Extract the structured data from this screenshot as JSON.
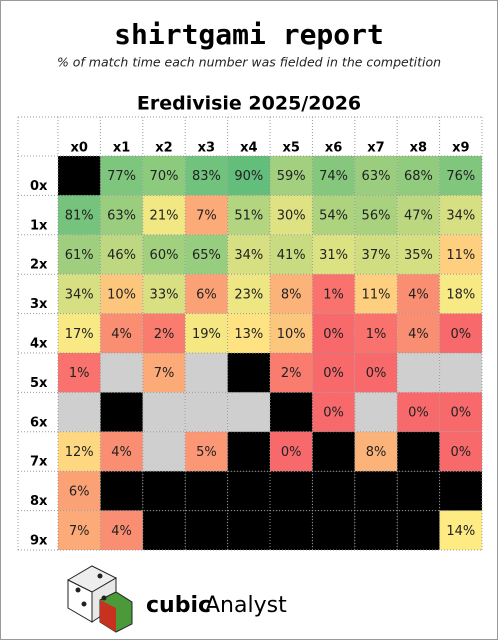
{
  "chart_data": {
    "type": "heatmap",
    "title": "shirtgami report",
    "subtitle": "% of match time each number was fielded in the competition",
    "section": "Eredivisie 2025/2026",
    "brand": [
      "cubic",
      "Analyst"
    ],
    "x": [
      "x0",
      "x1",
      "x2",
      "x3",
      "x4",
      "x5",
      "x6",
      "x7",
      "x8",
      "x9"
    ],
    "y": [
      "0x",
      "1x",
      "2x",
      "3x",
      "4x",
      "5x",
      "6x",
      "7x",
      "8x",
      "9x"
    ],
    "values": [
      [
        null,
        77,
        70,
        83,
        90,
        59,
        74,
        63,
        68,
        76
      ],
      [
        81,
        63,
        21,
        7,
        51,
        30,
        54,
        56,
        47,
        34
      ],
      [
        61,
        46,
        60,
        65,
        34,
        41,
        31,
        37,
        35,
        11
      ],
      [
        34,
        10,
        33,
        6,
        23,
        8,
        1,
        11,
        4,
        18
      ],
      [
        17,
        4,
        2,
        19,
        13,
        10,
        0,
        1,
        4,
        0
      ],
      [
        1,
        null,
        7,
        null,
        null,
        2,
        0,
        0,
        null,
        null
      ],
      [
        null,
        null,
        null,
        null,
        null,
        null,
        0,
        null,
        0,
        0
      ],
      [
        12,
        4,
        null,
        5,
        null,
        0,
        null,
        8,
        null,
        0
      ],
      [
        6,
        null,
        null,
        null,
        null,
        null,
        null,
        null,
        null,
        null
      ],
      [
        7,
        4,
        null,
        null,
        null,
        null,
        null,
        null,
        null,
        14
      ]
    ],
    "value_labels": [
      [
        null,
        "77%",
        "70%",
        "83%",
        "90%",
        "59%",
        "74%",
        "63%",
        "68%",
        "76%"
      ],
      [
        "81%",
        "63%",
        "21%",
        "7%",
        "51%",
        "30%",
        "54%",
        "56%",
        "47%",
        "34%"
      ],
      [
        "61%",
        "46%",
        "60%",
        "65%",
        "34%",
        "41%",
        "31%",
        "37%",
        "35%",
        "11%"
      ],
      [
        "34%",
        "10%",
        "33%",
        "6%",
        "23%",
        "8%",
        "1%",
        "11%",
        "4%",
        "18%"
      ],
      [
        "17%",
        "4%",
        "2%",
        "19%",
        "13%",
        "10%",
        "0%",
        "1%",
        "4%",
        "0%"
      ],
      [
        "1%",
        null,
        "7%",
        null,
        null,
        "2%",
        "0%",
        "0%",
        null,
        null
      ],
      [
        null,
        null,
        null,
        null,
        null,
        null,
        "0%",
        null,
        "0%",
        "0%"
      ],
      [
        "12%",
        "4%",
        null,
        "5%",
        null,
        "0%",
        null,
        "8%",
        null,
        "0%"
      ],
      [
        "6%",
        null,
        null,
        null,
        null,
        null,
        null,
        null,
        null,
        null
      ],
      [
        "7%",
        "4%",
        null,
        null,
        null,
        null,
        null,
        null,
        null,
        "14%"
      ]
    ],
    "empty_fill": [
      [
        "#000000",
        null,
        null,
        null,
        null,
        null,
        null,
        null,
        null,
        null
      ],
      [
        null,
        null,
        null,
        null,
        null,
        null,
        null,
        null,
        null,
        null
      ],
      [
        null,
        null,
        null,
        null,
        null,
        null,
        null,
        null,
        null,
        null
      ],
      [
        null,
        null,
        null,
        null,
        null,
        null,
        null,
        null,
        null,
        null
      ],
      [
        null,
        null,
        null,
        null,
        null,
        null,
        null,
        null,
        null,
        null
      ],
      [
        null,
        "#cfcfcf",
        null,
        "#cfcfcf",
        "#000000",
        null,
        null,
        null,
        "#cfcfcf",
        "#cfcfcf"
      ],
      [
        "#cfcfcf",
        "#000000",
        "#cfcfcf",
        "#cfcfcf",
        "#cfcfcf",
        "#000000",
        null,
        "#cfcfcf",
        null,
        null
      ],
      [
        null,
        null,
        "#cfcfcf",
        null,
        "#000000",
        null,
        "#000000",
        null,
        "#000000",
        null
      ],
      [
        null,
        "#000000",
        "#000000",
        "#000000",
        "#000000",
        "#000000",
        "#000000",
        "#000000",
        "#000000",
        "#000000"
      ],
      [
        null,
        null,
        "#000000",
        "#000000",
        "#000000",
        "#000000",
        "#000000",
        "#000000",
        "#000000",
        null
      ]
    ],
    "color_scale": [
      "#f8696b",
      "#ffeb84",
      "#63be7b"
    ]
  }
}
